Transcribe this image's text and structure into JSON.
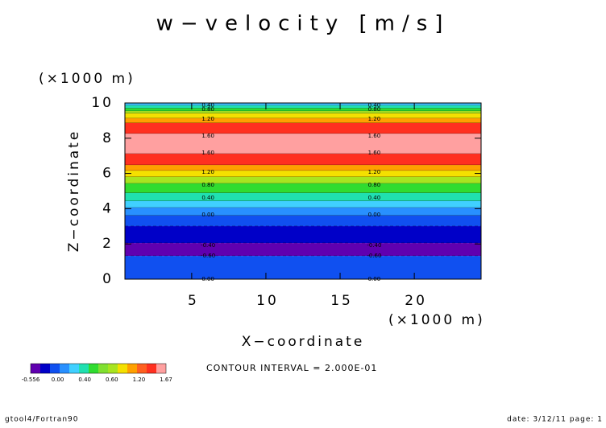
{
  "chart_data": {
    "type": "filled-contour",
    "title": "w−velocity [m/s]",
    "ylabel": "Z−coordinate",
    "xlabel": "X−coordinate",
    "yunit": "(×1000 m)",
    "xunit": "(×1000 m)",
    "contour_interval": "CONTOUR INTERVAL = 2.000E-01",
    "footer_left": "gtool4/Fortran90",
    "footer_right": "date: 3/12/11 page: 1",
    "xlim": [
      0.5,
      24.5
    ],
    "ylim": [
      0,
      10
    ],
    "xticks": [
      5,
      10,
      15,
      20
    ],
    "yticks": [
      0,
      2,
      4,
      6,
      8,
      10
    ],
    "bands": [
      {
        "from": 9.86,
        "to": 10,
        "color": "#40c0ff"
      },
      {
        "from": 9.7,
        "to": 9.86,
        "color": "#20e0b0"
      },
      {
        "from": 9.54,
        "to": 9.7,
        "color": "#30dc30"
      },
      {
        "from": 9.41,
        "to": 9.54,
        "color": "#a8e420"
      },
      {
        "from": 9.13,
        "to": 9.41,
        "color": "#f4e000"
      },
      {
        "from": 8.86,
        "to": 9.13,
        "color": "#ffa000"
      },
      {
        "from": 8.26,
        "to": 8.86,
        "color": "#ff3020"
      },
      {
        "from": 7.12,
        "to": 8.26,
        "color": "#ffa0a0"
      },
      {
        "from": 6.48,
        "to": 7.12,
        "color": "#ff3020"
      },
      {
        "from": 6.16,
        "to": 6.48,
        "color": "#ffa000"
      },
      {
        "from": 5.8,
        "to": 6.16,
        "color": "#f4e000"
      },
      {
        "from": 5.43,
        "to": 5.8,
        "color": "#a8e420"
      },
      {
        "from": 4.89,
        "to": 5.43,
        "color": "#30dc30"
      },
      {
        "from": 4.43,
        "to": 4.89,
        "color": "#20e0b0"
      },
      {
        "from": 4.06,
        "to": 4.43,
        "color": "#40d0ff"
      },
      {
        "from": 3.61,
        "to": 4.06,
        "color": "#2890ff"
      },
      {
        "from": 3.01,
        "to": 3.61,
        "color": "#1050f0"
      },
      {
        "from": 2.05,
        "to": 3.01,
        "color": "#0000c8"
      },
      {
        "from": 1.32,
        "to": 2.05,
        "color": "#6000b0"
      },
      {
        "from": 0,
        "to": 1.32,
        "color": "#1050f0"
      }
    ],
    "label_x": [
      6.1,
      17.3
    ],
    "contour_labels": [
      {
        "label": "0.40",
        "y": 9.86
      },
      {
        "label": "0.80",
        "y": 9.63
      },
      {
        "label": "1.20",
        "y": 9.09
      },
      {
        "label": "1.60",
        "y": 8.13
      },
      {
        "label": "1.60",
        "y": 7.17
      },
      {
        "label": "1.20",
        "y": 6.07
      },
      {
        "label": "0.80",
        "y": 5.34
      },
      {
        "label": "0.40",
        "y": 4.61
      },
      {
        "label": "0.00",
        "y": 3.65
      },
      {
        "label": "-0.40",
        "y": 1.92
      },
      {
        "label": "-0.60",
        "y": 1.32
      },
      {
        "label": "0.00",
        "y": 0.0
      }
    ],
    "colorbar_colors": [
      "#6000b0",
      "#0000c8",
      "#1050f0",
      "#2890ff",
      "#40d0ff",
      "#20e0b0",
      "#30dc30",
      "#80e030",
      "#a8e420",
      "#f4e000",
      "#ffa000",
      "#ff6020",
      "#ff3020",
      "#ffa0a0"
    ],
    "colorbar_labels": [
      "-0.556",
      "0.00",
      "0.40",
      "0.60",
      "1.20",
      "1.67"
    ]
  }
}
